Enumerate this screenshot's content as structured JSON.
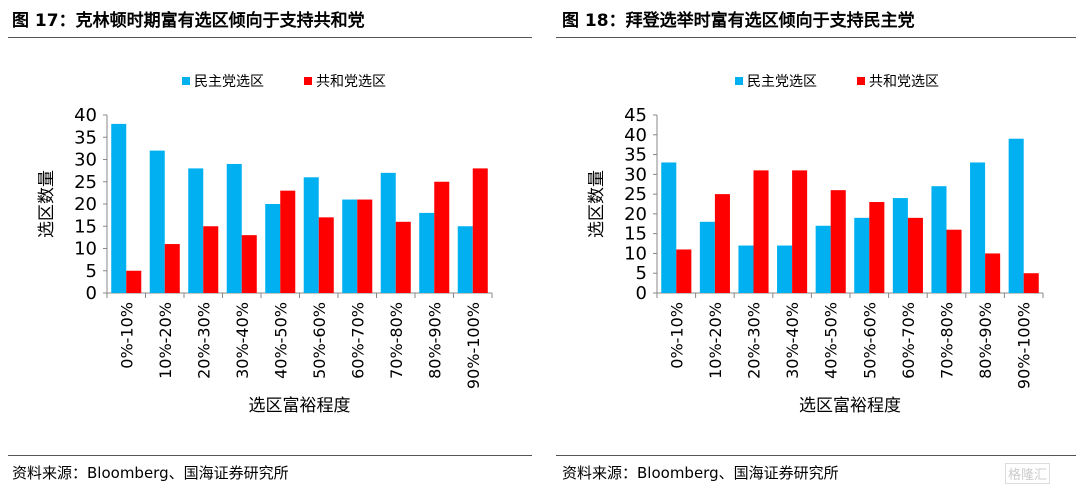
{
  "colors": {
    "dem": "#00B0F0",
    "rep": "#FF0000"
  },
  "watermark": "格隆汇",
  "chart_data": [
    {
      "type": "bar",
      "title": "图 17：克林顿时期富有选区倾向于支持共和党",
      "categories": [
        "0%-10%",
        "10%-20%",
        "20%-30%",
        "30%-40%",
        "40%-50%",
        "50%-60%",
        "60%-70%",
        "70%-80%",
        "80%-90%",
        "90%-100%"
      ],
      "series": [
        {
          "name": "民主党选区",
          "values": [
            38,
            32,
            28,
            29,
            20,
            26,
            21,
            27,
            18,
            15
          ]
        },
        {
          "name": "共和党选区",
          "values": [
            5,
            11,
            15,
            13,
            23,
            17,
            21,
            16,
            25,
            28
          ]
        }
      ],
      "xlabel": "选区富裕程度",
      "ylabel": "选区数量",
      "ylim": [
        0,
        40
      ],
      "yticks": [
        0,
        5,
        10,
        15,
        20,
        25,
        30,
        35,
        40
      ],
      "legend": "top",
      "grid": false,
      "source": "资料来源：Bloomberg、国海证券研究所"
    },
    {
      "type": "bar",
      "title": "图 18：拜登选举时富有选区倾向于支持民主党",
      "categories": [
        "0%-10%",
        "10%-20%",
        "20%-30%",
        "30%-40%",
        "40%-50%",
        "50%-60%",
        "60%-70%",
        "70%-80%",
        "80%-90%",
        "90%-100%"
      ],
      "series": [
        {
          "name": "民主党选区",
          "values": [
            33,
            18,
            12,
            12,
            17,
            19,
            24,
            27,
            33,
            39
          ]
        },
        {
          "name": "共和党选区",
          "values": [
            11,
            25,
            31,
            31,
            26,
            23,
            19,
            16,
            10,
            5
          ]
        }
      ],
      "xlabel": "选区富裕程度",
      "ylabel": "选区数量",
      "ylim": [
        0,
        45
      ],
      "yticks": [
        0,
        5,
        10,
        15,
        20,
        25,
        30,
        35,
        40,
        45
      ],
      "legend": "top",
      "grid": false,
      "source": "资料来源：Bloomberg、国海证券研究所"
    }
  ]
}
